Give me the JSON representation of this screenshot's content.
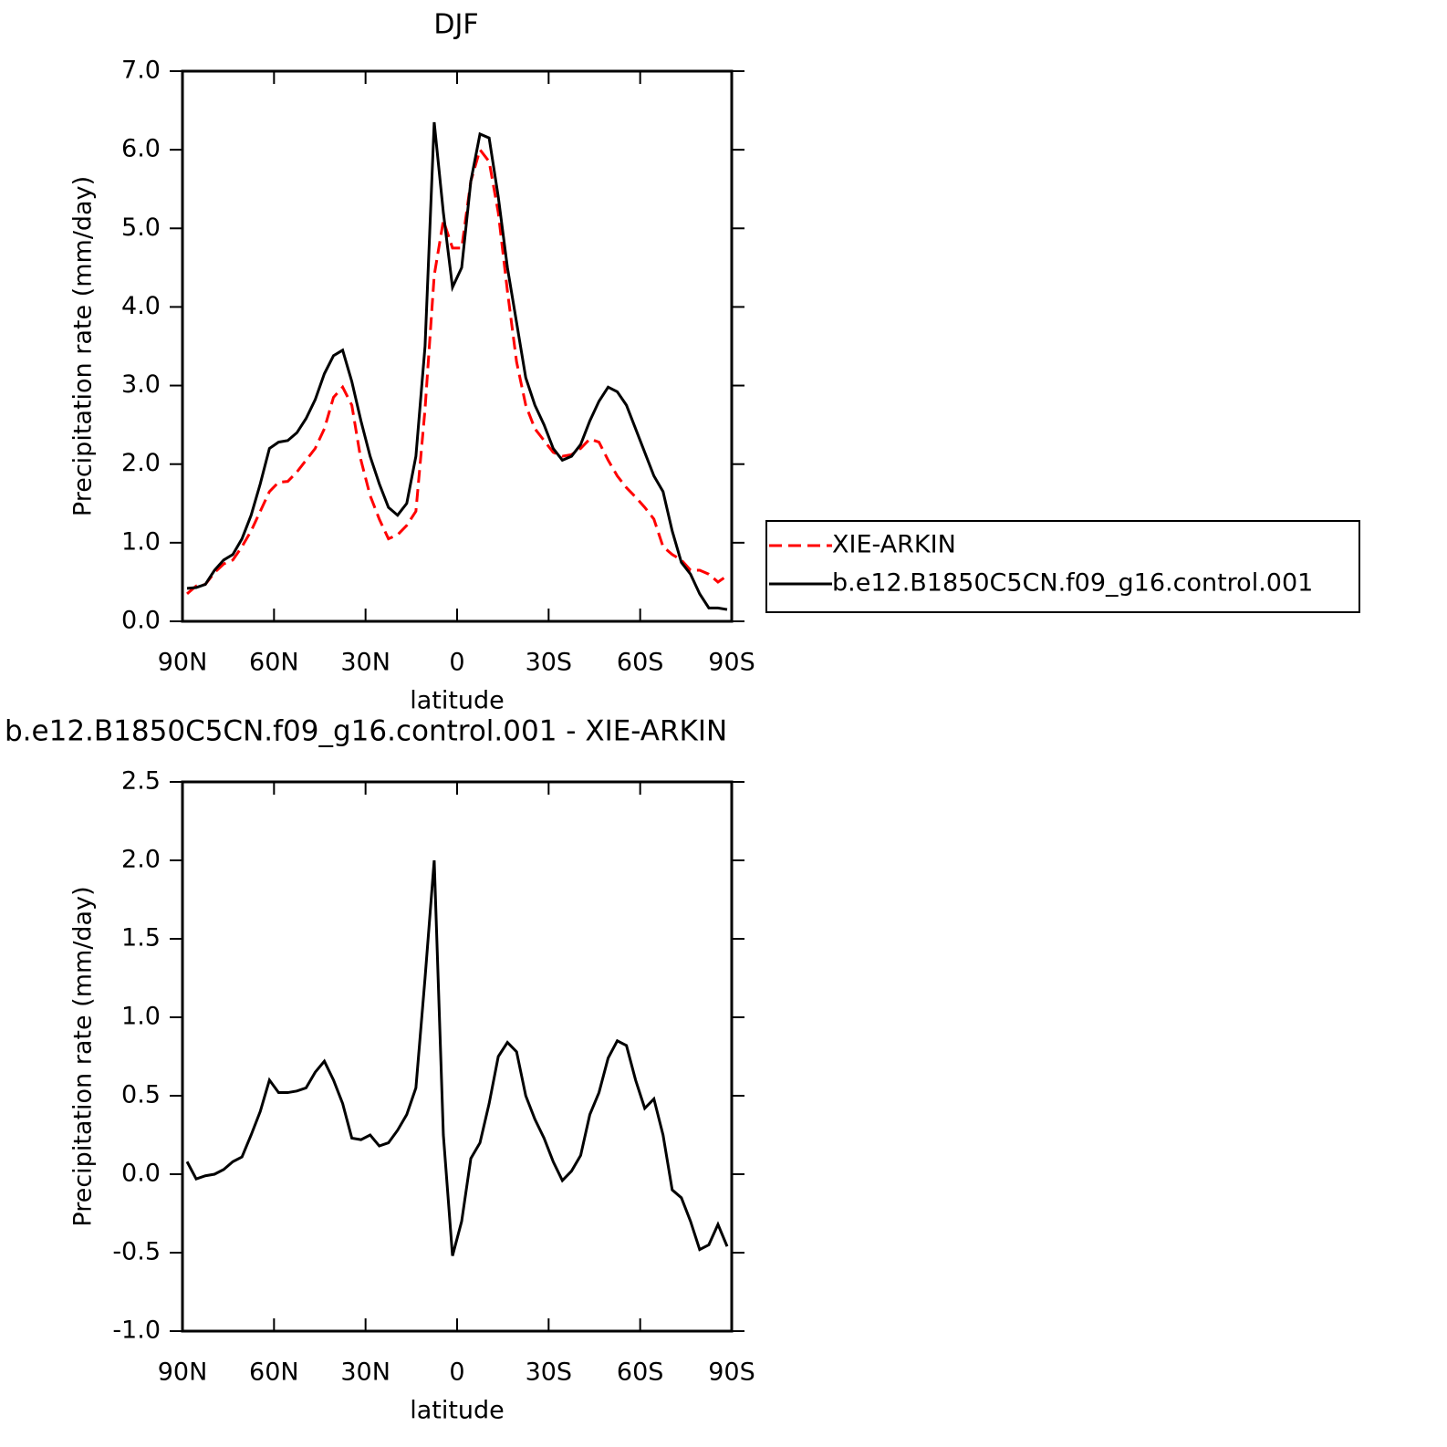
{
  "chart_data": [
    {
      "type": "line",
      "title": "DJF",
      "xlabel": "latitude",
      "ylabel": "Precipitation rate (mm/day)",
      "x": [
        88.5,
        85.5,
        82.5,
        79.5,
        76.5,
        73.5,
        70.5,
        67.5,
        64.5,
        61.5,
        58.5,
        55.5,
        52.5,
        49.5,
        46.5,
        43.5,
        40.5,
        37.5,
        34.5,
        31.5,
        28.5,
        25.5,
        22.5,
        19.5,
        16.5,
        13.5,
        10.5,
        7.5,
        4.5,
        1.5,
        -1.5,
        -4.5,
        -7.5,
        -10.5,
        -13.5,
        -16.5,
        -19.5,
        -22.5,
        -25.5,
        -28.5,
        -31.5,
        -34.5,
        -37.5,
        -40.5,
        -43.5,
        -46.5,
        -49.5,
        -52.5,
        -55.5,
        -58.5,
        -61.5,
        -64.5,
        -67.5,
        -70.5,
        -73.5,
        -76.5,
        -79.5,
        -82.5,
        -85.5,
        -88.5
      ],
      "series": [
        {
          "name": "XIE-ARKIN",
          "color": "#ff0000",
          "style": "dashed",
          "values": [
            0.35,
            0.45,
            0.47,
            0.62,
            0.73,
            0.78,
            0.95,
            1.15,
            1.4,
            1.65,
            1.77,
            1.78,
            1.9,
            2.05,
            2.2,
            2.45,
            2.85,
            2.98,
            2.75,
            2.05,
            1.6,
            1.3,
            1.05,
            1.1,
            1.22,
            1.4,
            2.7,
            4.4,
            5.1,
            4.75,
            4.75,
            5.6,
            6.0,
            5.85,
            5.2,
            4.2,
            3.3,
            2.75,
            2.45,
            2.3,
            2.15,
            2.1,
            2.12,
            2.2,
            2.32,
            2.28,
            2.05,
            1.85,
            1.7,
            1.58,
            1.45,
            1.3,
            0.95,
            0.85,
            0.78,
            0.65,
            0.65,
            0.6,
            0.5,
            0.58
          ]
        },
        {
          "name": "b.e12.B1850C5CN.f09_g16.control.001",
          "color": "#000000",
          "style": "solid",
          "values": [
            0.42,
            0.43,
            0.47,
            0.65,
            0.78,
            0.85,
            1.05,
            1.35,
            1.75,
            2.2,
            2.28,
            2.3,
            2.4,
            2.58,
            2.82,
            3.15,
            3.38,
            3.45,
            3.05,
            2.55,
            2.1,
            1.75,
            1.45,
            1.35,
            1.5,
            2.1,
            3.5,
            6.35,
            5.2,
            4.25,
            4.5,
            5.6,
            6.2,
            6.15,
            5.4,
            4.5,
            3.8,
            3.1,
            2.75,
            2.5,
            2.2,
            2.05,
            2.1,
            2.25,
            2.55,
            2.8,
            2.98,
            2.92,
            2.75,
            2.45,
            2.15,
            1.85,
            1.65,
            1.15,
            0.75,
            0.6,
            0.35,
            0.17,
            0.17,
            0.15
          ]
        }
      ],
      "xlim": [
        90,
        -90
      ],
      "xticks": [
        {
          "value": 90,
          "label": "90N"
        },
        {
          "value": 60,
          "label": "60N"
        },
        {
          "value": 30,
          "label": "30N"
        },
        0,
        {
          "value": -30,
          "label": "30S"
        },
        {
          "value": -60,
          "label": "60S"
        },
        {
          "value": -90,
          "label": "90S"
        }
      ],
      "ylim": [
        0,
        7
      ],
      "yticks": [
        {
          "value": 0,
          "label": "0.0"
        },
        {
          "value": 1,
          "label": "1.0"
        },
        {
          "value": 2,
          "label": "2.0"
        },
        {
          "value": 3,
          "label": "3.0"
        },
        {
          "value": 4,
          "label": "4.0"
        },
        {
          "value": 5,
          "label": "5.0"
        },
        {
          "value": 6,
          "label": "6.0"
        },
        {
          "value": 7,
          "label": "7.0"
        }
      ],
      "legend": "outside right"
    },
    {
      "type": "line",
      "title": "b.e12.B1850C5CN.f09_g16.control.001 - XIE-ARKIN",
      "xlabel": "latitude",
      "ylabel": "Precipitation rate (mm/day)",
      "x": [
        88.5,
        85.5,
        82.5,
        79.5,
        76.5,
        73.5,
        70.5,
        67.5,
        64.5,
        61.5,
        58.5,
        55.5,
        52.5,
        49.5,
        46.5,
        43.5,
        40.5,
        37.5,
        34.5,
        31.5,
        28.5,
        25.5,
        22.5,
        19.5,
        16.5,
        13.5,
        10.5,
        7.5,
        4.5,
        1.5,
        -1.5,
        -4.5,
        -7.5,
        -10.5,
        -13.5,
        -16.5,
        -19.5,
        -22.5,
        -25.5,
        -28.5,
        -31.5,
        -34.5,
        -37.5,
        -40.5,
        -43.5,
        -46.5,
        -49.5,
        -52.5,
        -55.5,
        -58.5,
        -61.5,
        -64.5,
        -67.5,
        -70.5,
        -73.5,
        -76.5,
        -79.5,
        -82.5,
        -85.5,
        -88.5
      ],
      "series": [
        {
          "color": "#000000",
          "style": "solid",
          "values": [
            0.08,
            -0.03,
            -0.01,
            0,
            0.03,
            0.08,
            0.11,
            0.25,
            0.4,
            0.6,
            0.52,
            0.52,
            0.53,
            0.55,
            0.65,
            0.72,
            0.6,
            0.45,
            0.23,
            0.22,
            0.25,
            0.18,
            0.2,
            0.28,
            0.38,
            0.55,
            1.25,
            2.0,
            0.25,
            -0.52,
            -0.3,
            0.1,
            0.2,
            0.45,
            0.75,
            0.84,
            0.78,
            0.5,
            0.35,
            0.23,
            0.08,
            -0.04,
            0.02,
            0.12,
            0.38,
            0.52,
            0.74,
            0.85,
            0.82,
            0.6,
            0.42,
            0.48,
            0.25,
            -0.1,
            -0.15,
            -0.3,
            -0.48,
            -0.45,
            -0.32,
            -0.46
          ]
        }
      ],
      "xlim": [
        90,
        -90
      ],
      "xticks": [
        {
          "value": 90,
          "label": "90N"
        },
        {
          "value": 60,
          "label": "60N"
        },
        {
          "value": 30,
          "label": "30N"
        },
        0,
        {
          "value": -30,
          "label": "30S"
        },
        {
          "value": -60,
          "label": "60S"
        },
        {
          "value": -90,
          "label": "90S"
        }
      ],
      "ylim": [
        -1,
        2.5
      ],
      "yticks": [
        {
          "value": -1,
          "label": "-1.0"
        },
        {
          "value": -0.5,
          "label": "-0.5"
        },
        {
          "value": 0,
          "label": "0.0"
        },
        {
          "value": 0.5,
          "label": "0.5"
        },
        {
          "value": 1,
          "label": "1.0"
        },
        {
          "value": 1.5,
          "label": "1.5"
        },
        {
          "value": 2,
          "label": "2.0"
        },
        {
          "value": 2.5,
          "label": "2.5"
        }
      ]
    }
  ]
}
